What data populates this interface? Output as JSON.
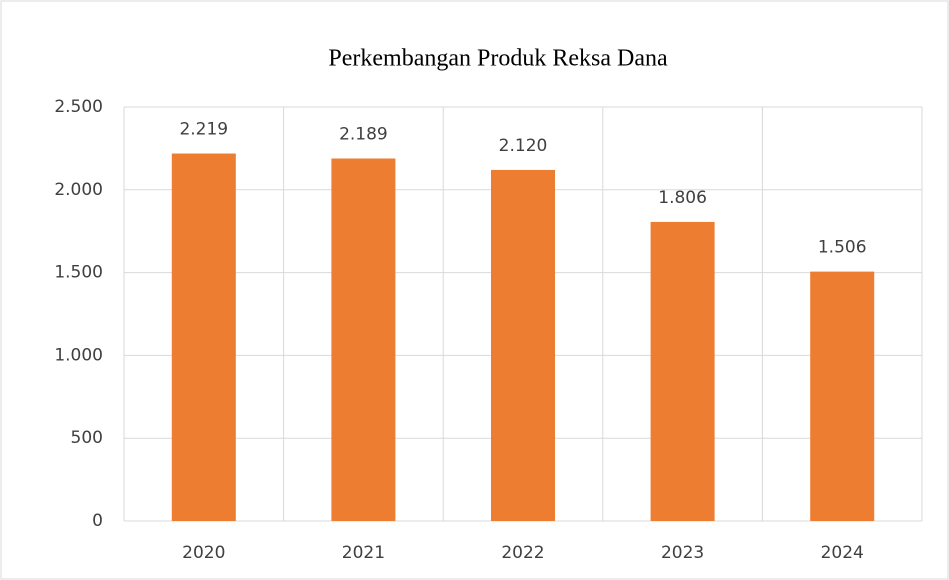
{
  "chart_data": {
    "type": "bar",
    "title": "Perkembangan Produk Reksa Dana",
    "categories": [
      "2020",
      "2021",
      "2022",
      "2023",
      "2024"
    ],
    "values": [
      2219,
      2189,
      2120,
      1806,
      1506
    ],
    "value_labels": [
      "2.219",
      "2.189",
      "2.120",
      "1.806",
      "1.506"
    ],
    "color": "#ed7d31",
    "ylim": [
      0,
      2500
    ],
    "yticks": [
      0,
      {
        "value": 500,
        "label": "500"
      },
      {
        "value": 1000,
        "label": "1.000"
      },
      {
        "value": 1500,
        "label": "1.500"
      },
      {
        "value": 2000,
        "label": "2.000"
      },
      {
        "value": 2500,
        "label": "2.500"
      }
    ],
    "grid": true
  }
}
